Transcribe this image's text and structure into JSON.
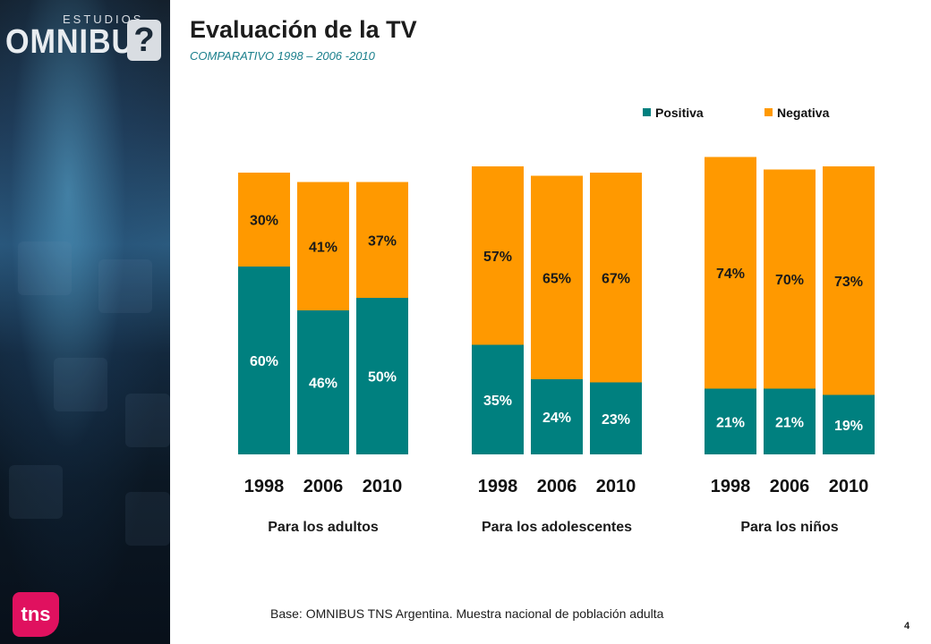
{
  "sidebar": {
    "logo_small": "ESTUDIOS",
    "logo_big": "OMNIBUS",
    "logo_mark": "?",
    "brand_badge": "tns"
  },
  "slide": {
    "title": "Evaluación de la TV",
    "subtitle": "COMPARATIVO 1998 – 2006 -2010",
    "footnote": "Base: OMNIBUS TNS Argentina. Muestra nacional de población adulta",
    "page_number": "4"
  },
  "chart_data": {
    "type": "bar",
    "stacked": true,
    "legend_position": "top-right",
    "colors": {
      "Positiva": "#00807f",
      "Negativa": "#ff9900"
    },
    "legend": [
      "Positiva",
      "Negativa"
    ],
    "groups": [
      {
        "label": "Para los adultos",
        "categories": [
          "1998",
          "2006",
          "2010"
        ],
        "series": [
          {
            "name": "Positiva",
            "values": [
              60,
              46,
              50
            ]
          },
          {
            "name": "Negativa",
            "values": [
              30,
              41,
              37
            ]
          }
        ]
      },
      {
        "label": "Para los adolescentes",
        "categories": [
          "1998",
          "2006",
          "2010"
        ],
        "series": [
          {
            "name": "Positiva",
            "values": [
              35,
              24,
              23
            ]
          },
          {
            "name": "Negativa",
            "values": [
              57,
              65,
              67
            ]
          }
        ]
      },
      {
        "label": "Para los niños",
        "categories": [
          "1998",
          "2006",
          "2010"
        ],
        "series": [
          {
            "name": "Positiva",
            "values": [
              21,
              21,
              19
            ]
          },
          {
            "name": "Negativa",
            "values": [
              74,
              70,
              73
            ]
          }
        ]
      }
    ],
    "value_suffix": "%"
  }
}
